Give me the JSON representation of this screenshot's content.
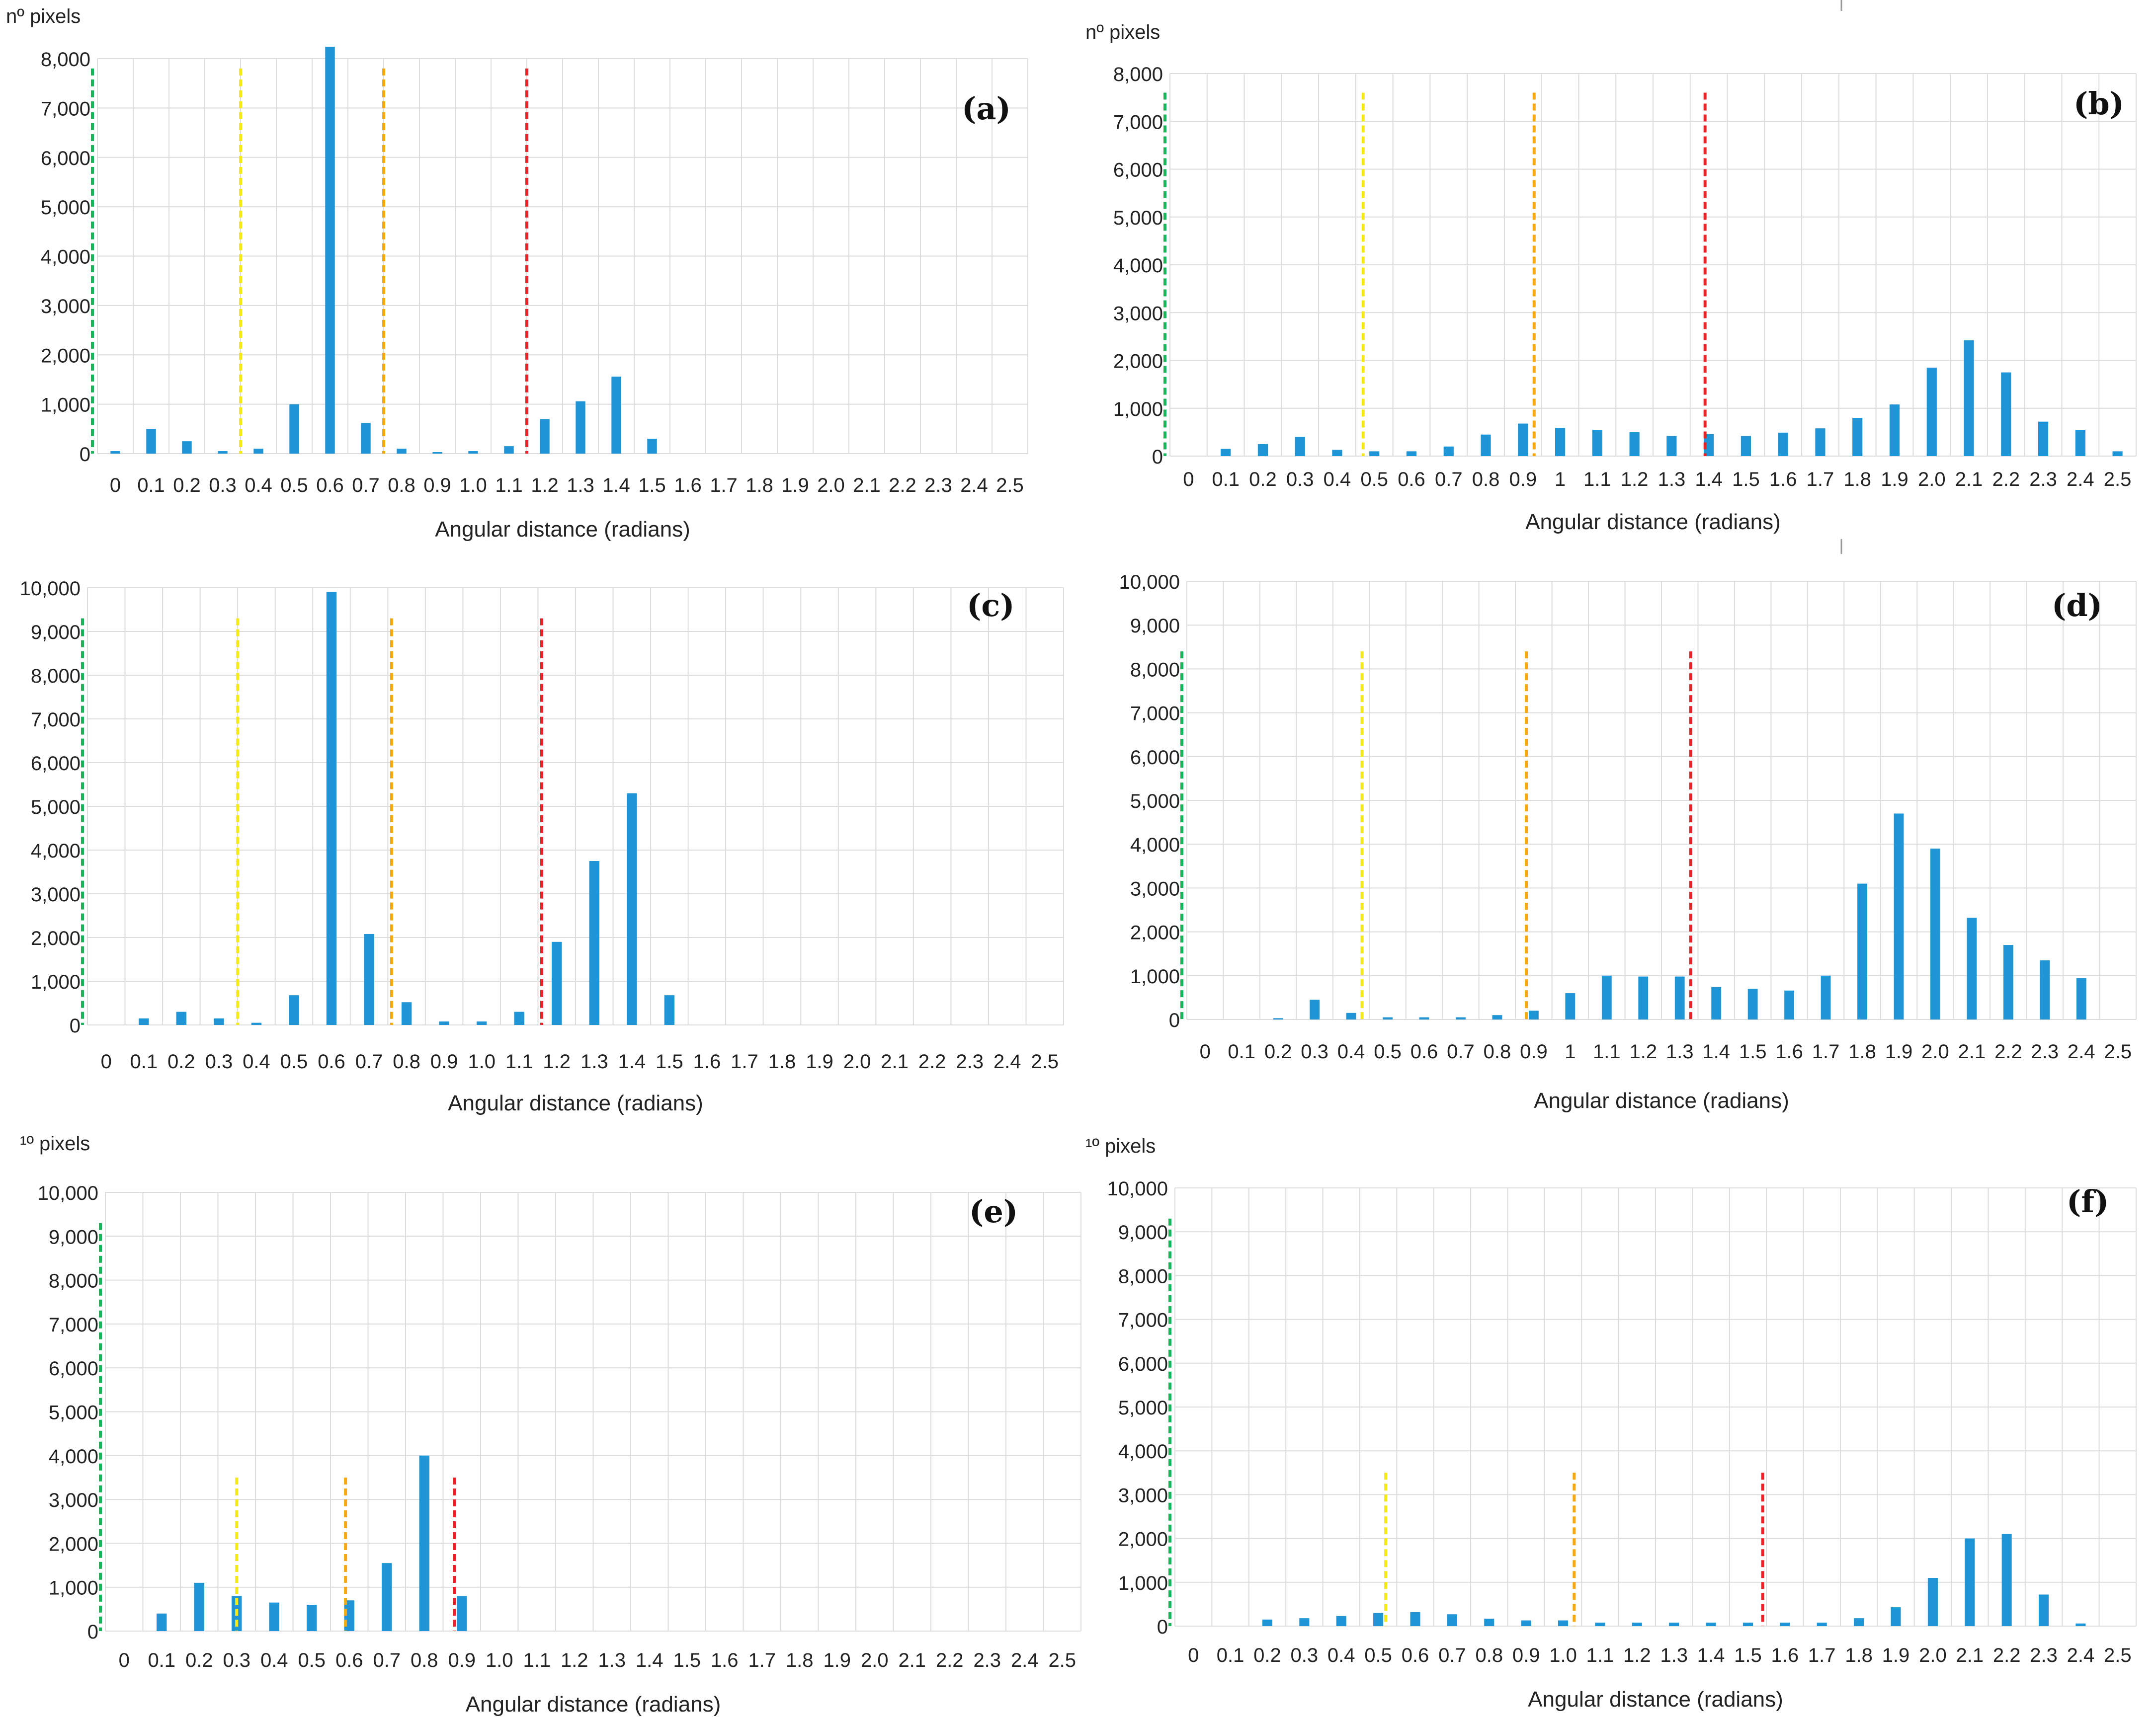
{
  "figure": {
    "panels": [
      "(a)",
      "(b)",
      "(c)",
      "(d)",
      "(e)",
      "(f)"
    ]
  },
  "colors": {
    "bar": "#1f95d6",
    "green": "#19b35a",
    "yellow": "#f5ea18",
    "orange": "#f5a90f",
    "red": "#e8242b",
    "grid": "#dcdcdc"
  },
  "chart_data": [
    {
      "id": "a",
      "type": "bar",
      "panel_label": "(a)",
      "ytitle": "nº pixels",
      "xlabel": "Angular distance (radians)",
      "ylim": [
        0,
        8000
      ],
      "yticks": [
        0,
        1000,
        2000,
        3000,
        4000,
        5000,
        6000,
        7000,
        8000
      ],
      "ytick_labels": [
        "0",
        "1,000",
        "2,000",
        "3,000",
        "4,000",
        "5,000",
        "6,000",
        "7,000",
        "8,000"
      ],
      "categories": [
        "0",
        "0.1",
        "0.2",
        "0.3",
        "0.4",
        "0.5",
        "0.6",
        "0.7",
        "0.8",
        "0.9",
        "1.0",
        "1.1",
        "1.2",
        "1.3",
        "1.4",
        "1.5",
        "1.6",
        "1.7",
        "1.8",
        "1.9",
        "2.0",
        "2.1",
        "2.2",
        "2.3",
        "2.4",
        "2.5"
      ],
      "values": [
        50,
        500,
        250,
        50,
        100,
        1000,
        8300,
        620,
        100,
        30,
        50,
        150,
        700,
        1060,
        1560,
        300,
        0,
        0,
        0,
        0,
        0,
        0,
        0,
        0,
        0,
        0
      ],
      "vlines": [
        {
          "x": 0,
          "color": "green",
          "top": 7800
        },
        {
          "x": 0.35,
          "color": "yellow",
          "top": 7800
        },
        {
          "x": 0.75,
          "color": "orange",
          "top": 7800
        },
        {
          "x": 1.15,
          "color": "red",
          "top": 7800
        }
      ]
    },
    {
      "id": "b",
      "type": "bar",
      "panel_label": "(b)",
      "ytitle": "nº pixels",
      "xlabel": "Angular distance (radians)",
      "ylim": [
        0,
        8000
      ],
      "yticks": [
        0,
        1000,
        2000,
        3000,
        4000,
        5000,
        6000,
        7000,
        8000
      ],
      "ytick_labels": [
        "0",
        "1,000",
        "2,000",
        "3,000",
        "4,000",
        "5,000",
        "6,000",
        "7,000",
        "8,000"
      ],
      "categories": [
        "0",
        "0.1",
        "0.2",
        "0.3",
        "0.4",
        "0.5",
        "0.6",
        "0.7",
        "0.8",
        "0.9",
        "1",
        "1.1",
        "1.2",
        "1.3",
        "1.4",
        "1.5",
        "1.6",
        "1.7",
        "1.8",
        "1.9",
        "2.0",
        "2.1",
        "2.2",
        "2.3",
        "2.4",
        "2.5"
      ],
      "values": [
        0,
        150,
        250,
        400,
        130,
        100,
        100,
        200,
        450,
        680,
        590,
        550,
        500,
        420,
        460,
        420,
        490,
        580,
        800,
        1080,
        1850,
        2420,
        1750,
        720,
        550,
        100
      ],
      "vlines": [
        {
          "x": 0,
          "color": "green",
          "top": 7600
        },
        {
          "x": 0.47,
          "color": "yellow",
          "top": 7600
        },
        {
          "x": 0.93,
          "color": "orange",
          "top": 7600
        },
        {
          "x": 1.39,
          "color": "red",
          "top": 7600
        }
      ]
    },
    {
      "id": "c",
      "type": "bar",
      "panel_label": "(c)",
      "ytitle": "",
      "xlabel": "Angular distance (radians)",
      "ylim": [
        0,
        10000
      ],
      "yticks": [
        0,
        1000,
        2000,
        3000,
        4000,
        5000,
        6000,
        7000,
        8000,
        9000,
        10000
      ],
      "ytick_labels": [
        "0",
        "1,000",
        "2,000",
        "3,000",
        "4,000",
        "5,000",
        "6,000",
        "7,000",
        "8,000",
        "9,000",
        "10,000"
      ],
      "categories": [
        "0",
        "0.1",
        "0.2",
        "0.3",
        "0.4",
        "0.5",
        "0.6",
        "0.7",
        "0.8",
        "0.9",
        "1.0",
        "1.1",
        "1.2",
        "1.3",
        "1.4",
        "1.5",
        "1.6",
        "1.7",
        "1.8",
        "1.9",
        "2.0",
        "2.1",
        "2.2",
        "2.3",
        "2.4",
        "2.5"
      ],
      "values": [
        0,
        150,
        300,
        150,
        50,
        680,
        9900,
        2080,
        520,
        80,
        80,
        300,
        1900,
        3750,
        5300,
        680,
        0,
        0,
        0,
        0,
        0,
        0,
        0,
        0,
        0,
        0
      ],
      "vlines": [
        {
          "x": 0,
          "color": "green",
          "top": 9300
        },
        {
          "x": 0.35,
          "color": "yellow",
          "top": 9300
        },
        {
          "x": 0.76,
          "color": "orange",
          "top": 9300
        },
        {
          "x": 1.16,
          "color": "red",
          "top": 9300
        }
      ]
    },
    {
      "id": "d",
      "type": "bar",
      "panel_label": "(d)",
      "ytitle": "",
      "xlabel": "Angular distance (radians)",
      "ylim": [
        0,
        10000
      ],
      "yticks": [
        0,
        1000,
        2000,
        3000,
        4000,
        5000,
        6000,
        7000,
        8000,
        9000,
        10000
      ],
      "ytick_labels": [
        "0",
        "1,000",
        "2,000",
        "3,000",
        "4,000",
        "5,000",
        "6,000",
        "7,000",
        "8,000",
        "9,000",
        "10,000"
      ],
      "categories": [
        "0",
        "0.1",
        "0.2",
        "0.3",
        "0.4",
        "0.5",
        "0.6",
        "0.7",
        "0.8",
        "0.9",
        "1",
        "1.1",
        "1.2",
        "1.3",
        "1.4",
        "1.5",
        "1.6",
        "1.7",
        "1.8",
        "1.9",
        "2.0",
        "2.1",
        "2.2",
        "2.3",
        "2.4",
        "2.5"
      ],
      "values": [
        0,
        0,
        30,
        450,
        150,
        50,
        50,
        50,
        100,
        200,
        600,
        1000,
        980,
        980,
        740,
        700,
        660,
        1000,
        3100,
        4700,
        3900,
        2320,
        1700,
        1350,
        950,
        0
      ],
      "vlines": [
        {
          "x": 0,
          "color": "green",
          "top": 8400
        },
        {
          "x": 0.43,
          "color": "yellow",
          "top": 8400
        },
        {
          "x": 0.88,
          "color": "orange",
          "top": 8400
        },
        {
          "x": 1.33,
          "color": "red",
          "top": 8400
        }
      ]
    },
    {
      "id": "e",
      "type": "bar",
      "panel_label": "(e)",
      "ytitle": "¹º pixels",
      "xlabel": "Angular distance (radians)",
      "ylim": [
        0,
        10000
      ],
      "yticks": [
        0,
        1000,
        2000,
        3000,
        4000,
        5000,
        6000,
        7000,
        8000,
        9000,
        10000
      ],
      "ytick_labels": [
        "0",
        "1,000",
        "2,000",
        "3,000",
        "4,000",
        "5,000",
        "6,000",
        "7,000",
        "8,000",
        "9,000",
        "10,000"
      ],
      "categories": [
        "0",
        "0.1",
        "0.2",
        "0.3",
        "0.4",
        "0.5",
        "0.6",
        "0.7",
        "0.8",
        "0.9",
        "1.0",
        "1.1",
        "1.2",
        "1.3",
        "1.4",
        "1.5",
        "1.6",
        "1.7",
        "1.8",
        "1.9",
        "2.0",
        "2.1",
        "2.2",
        "2.3",
        "2.4",
        "2.5"
      ],
      "values": [
        0,
        400,
        1100,
        800,
        650,
        600,
        700,
        1550,
        4000,
        800,
        0,
        0,
        0,
        0,
        0,
        0,
        0,
        0,
        0,
        0,
        0,
        0,
        0,
        0,
        0,
        0
      ],
      "vlines": [
        {
          "x": 0,
          "color": "green",
          "top": 9300
        },
        {
          "x": 0.3,
          "color": "yellow",
          "top": 3500
        },
        {
          "x": 0.59,
          "color": "orange",
          "top": 3500
        },
        {
          "x": 0.88,
          "color": "red",
          "top": 3500
        }
      ]
    },
    {
      "id": "f",
      "type": "bar",
      "panel_label": "(f)",
      "ytitle": "¹º pixels",
      "xlabel": "Angular distance (radians)",
      "ylim": [
        0,
        10000
      ],
      "yticks": [
        0,
        1000,
        2000,
        3000,
        4000,
        5000,
        6000,
        7000,
        8000,
        9000,
        10000
      ],
      "ytick_labels": [
        "0",
        "1,000",
        "2,000",
        "3,000",
        "4,000",
        "5,000",
        "6,000",
        "7,000",
        "8,000",
        "9,000",
        "10,000"
      ],
      "categories": [
        "0",
        "0.1",
        "0.2",
        "0.3",
        "0.4",
        "0.5",
        "0.6",
        "0.7",
        "0.8",
        "0.9",
        "1.0",
        "1.1",
        "1.2",
        "1.3",
        "1.4",
        "1.5",
        "1.6",
        "1.7",
        "1.8",
        "1.9",
        "2.0",
        "2.1",
        "2.2",
        "2.3",
        "2.4",
        "2.5"
      ],
      "values": [
        0,
        0,
        150,
        180,
        230,
        300,
        320,
        270,
        170,
        130,
        130,
        80,
        80,
        80,
        80,
        80,
        80,
        80,
        180,
        430,
        1100,
        2000,
        2100,
        720,
        60,
        0
      ],
      "vlines": [
        {
          "x": 0,
          "color": "green",
          "top": 9300
        },
        {
          "x": 0.52,
          "color": "yellow",
          "top": 3500
        },
        {
          "x": 1.03,
          "color": "orange",
          "top": 3500
        },
        {
          "x": 1.54,
          "color": "red",
          "top": 3500
        }
      ]
    }
  ]
}
